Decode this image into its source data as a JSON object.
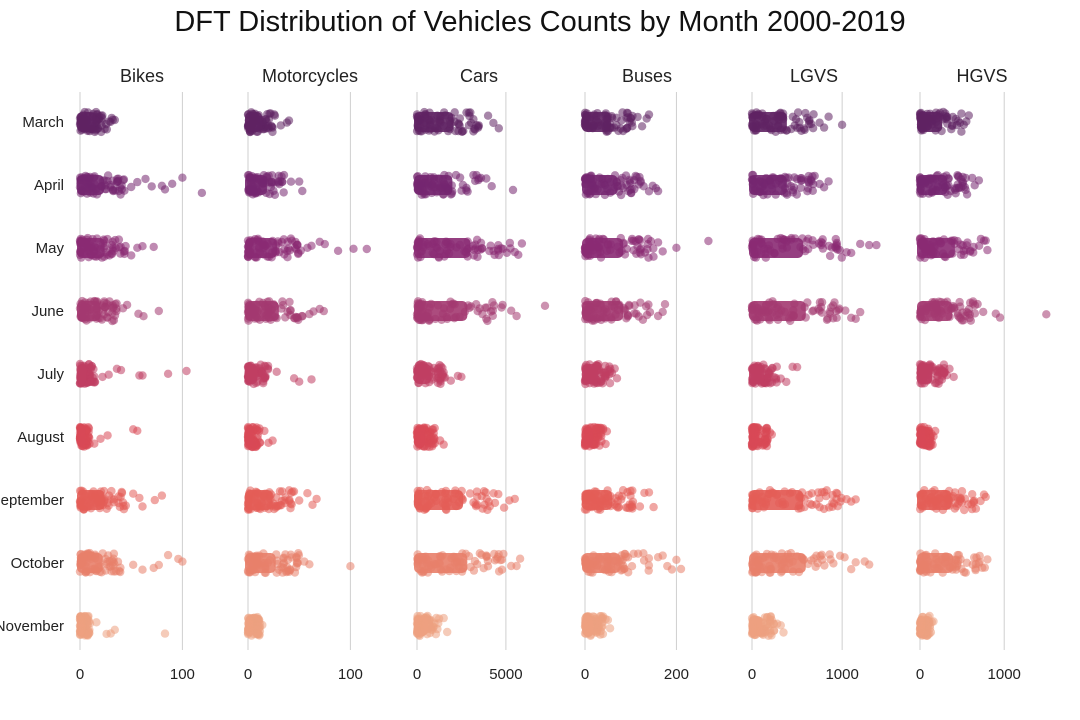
{
  "chart_data": {
    "type": "scatter",
    "style": "strip plot, one facet per vehicle type, jittered points per month",
    "title": "DFT Distribution of Vehicles Counts by Month 2000-2019",
    "grid": "vertical gridlines at tick positions",
    "months": [
      "March",
      "April",
      "May",
      "June",
      "July",
      "August",
      "September",
      "October",
      "November"
    ],
    "month_colors": [
      "#5f2263",
      "#742670",
      "#8a2a73",
      "#a33870",
      "#c03e63",
      "#d84856",
      "#e35d57",
      "#e8806a",
      "#eda07f"
    ],
    "facets": [
      {
        "title": "Bikes",
        "xlim": [
          -5,
          125
        ],
        "ticks": [
          0,
          100
        ],
        "tick_labels": [
          "0",
          "100"
        ],
        "dense_extent": [
          0,
          30,
          25,
          44,
          45,
          33,
          38,
          15,
          45,
          42,
          10
        ],
        "series": [
          {
            "month": "March",
            "dense_max": 30,
            "outliers": [
              32,
              34,
              31
            ]
          },
          {
            "month": "April",
            "dense_max": 44,
            "outliers": [
              50,
              56,
              64,
              70,
              80,
              83,
              90,
              100,
              119
            ]
          },
          {
            "month": "May",
            "dense_max": 45,
            "outliers": [
              50,
              56,
              61,
              72
            ]
          },
          {
            "month": "June",
            "dense_max": 38,
            "outliers": [
              42,
              46,
              57,
              62,
              77
            ]
          },
          {
            "month": "July",
            "dense_max": 15,
            "outliers": [
              22,
              28,
              36,
              40,
              58,
              61,
              86,
              104
            ]
          },
          {
            "month": "August",
            "dense_max": 10,
            "outliers": [
              14,
              20,
              27,
              52,
              56
            ]
          },
          {
            "month": "September",
            "dense_max": 45,
            "outliers": [
              52,
              58,
              61,
              73,
              80
            ]
          },
          {
            "month": "October",
            "dense_max": 42,
            "outliers": [
              52,
              61,
              72,
              77,
              86,
              96,
              100
            ]
          },
          {
            "month": "November",
            "dense_max": 10,
            "outliers": [
              16,
              26,
              30,
              34,
              83
            ]
          }
        ]
      },
      {
        "title": "Motorcycles",
        "xlim": [
          -5,
          125
        ],
        "ticks": [
          0,
          100
        ],
        "tick_labels": [
          "0",
          "100"
        ],
        "series": [
          {
            "month": "March",
            "dense_max": 28,
            "outliers": [
              32,
              38,
              40
            ]
          },
          {
            "month": "April",
            "dense_max": 36,
            "outliers": [
              42,
              50,
              53
            ]
          },
          {
            "month": "May",
            "dense_max": 52,
            "outliers": [
              58,
              62,
              70,
              75,
              88,
              103,
              116
            ]
          },
          {
            "month": "June",
            "dense_max": 55,
            "outliers": [
              60,
              64,
              70,
              74
            ]
          },
          {
            "month": "July",
            "dense_max": 20,
            "outliers": [
              28,
              45,
              50,
              62
            ]
          },
          {
            "month": "August",
            "dense_max": 12,
            "outliers": [
              16,
              20,
              24
            ]
          },
          {
            "month": "September",
            "dense_max": 45,
            "outliers": [
              50,
              58,
              63,
              67
            ]
          },
          {
            "month": "October",
            "dense_max": 50,
            "outliers": [
              55,
              60,
              100
            ]
          },
          {
            "month": "November",
            "dense_max": 12,
            "outliers": [
              14
            ]
          }
        ]
      },
      {
        "title": "Cars",
        "xlim": [
          -300,
          7200
        ],
        "ticks": [
          0,
          5000
        ],
        "tick_labels": [
          "0",
          "5000"
        ],
        "series": [
          {
            "month": "March",
            "dense_max": 3700,
            "outliers": [
              4000,
              4300,
              4600
            ]
          },
          {
            "month": "April",
            "dense_max": 3600,
            "outliers": [
              3900,
              4200,
              5400
            ]
          },
          {
            "month": "May",
            "dense_max": 5300,
            "outliers": [
              5500,
              5700,
              5900
            ]
          },
          {
            "month": "June",
            "dense_max": 5000,
            "outliers": [
              5300,
              5600,
              7200
            ]
          },
          {
            "month": "July",
            "dense_max": 1600,
            "outliers": [
              1900,
              2300,
              2500
            ]
          },
          {
            "month": "August",
            "dense_max": 1000,
            "outliers": [
              1300,
              1500
            ]
          },
          {
            "month": "September",
            "dense_max": 4600,
            "outliers": [
              4900,
              5200,
              5500
            ]
          },
          {
            "month": "October",
            "dense_max": 5000,
            "outliers": [
              5300,
              5600,
              5800
            ]
          },
          {
            "month": "November",
            "dense_max": 1300,
            "outliers": [
              1500,
              1700
            ]
          }
        ]
      },
      {
        "title": "Buses",
        "xlim": [
          -12,
          280
        ],
        "ticks": [
          0,
          200
        ],
        "tick_labels": [
          "0",
          "200"
        ],
        "series": [
          {
            "month": "March",
            "dense_max": 105,
            "outliers": [
              115,
              125,
              135,
              140
            ]
          },
          {
            "month": "April",
            "dense_max": 130,
            "outliers": [
              140,
              148,
              155,
              160
            ]
          },
          {
            "month": "May",
            "dense_max": 150,
            "outliers": [
              160,
              170,
              200,
              270
            ]
          },
          {
            "month": "June",
            "dense_max": 150,
            "outliers": [
              160,
              170,
              175
            ]
          },
          {
            "month": "July",
            "dense_max": 60,
            "outliers": [
              65,
              70
            ]
          },
          {
            "month": "August",
            "dense_max": 40,
            "outliers": [
              45,
              48
            ]
          },
          {
            "month": "September",
            "dense_max": 110,
            "outliers": [
              120,
              130,
              140,
              150
            ]
          },
          {
            "month": "October",
            "dense_max": 140,
            "outliers": [
              160,
              170,
              180,
              190,
              200,
              210
            ]
          },
          {
            "month": "November",
            "dense_max": 40,
            "outliers": [
              45,
              50,
              55
            ]
          }
        ]
      },
      {
        "title": "LGVS",
        "xlim": [
          -60,
          1420
        ],
        "ticks": [
          0,
          1000
        ],
        "tick_labels": [
          "0",
          "1000"
        ],
        "series": [
          {
            "month": "March",
            "dense_max": 700,
            "outliers": [
              750,
              800,
              850,
              1000
            ]
          },
          {
            "month": "April",
            "dense_max": 700,
            "outliers": [
              750,
              800,
              850
            ]
          },
          {
            "month": "May",
            "dense_max": 1000,
            "outliers": [
              1050,
              1100,
              1200,
              1300,
              1380
            ]
          },
          {
            "month": "June",
            "dense_max": 1050,
            "outliers": [
              1100,
              1150,
              1200
            ]
          },
          {
            "month": "July",
            "dense_max": 280,
            "outliers": [
              320,
              380,
              450,
              500
            ]
          },
          {
            "month": "August",
            "dense_max": 180,
            "outliers": [
              200,
              220
            ]
          },
          {
            "month": "September",
            "dense_max": 1000,
            "outliers": [
              1050,
              1100,
              1150
            ]
          },
          {
            "month": "October",
            "dense_max": 1050,
            "outliers": [
              1100,
              1150,
              1250,
              1300
            ]
          },
          {
            "month": "November",
            "dense_max": 250,
            "outliers": [
              280,
              320,
              350
            ]
          }
        ]
      },
      {
        "title": "HGVS",
        "xlim": [
          -50,
          1520
        ],
        "ticks": [
          0,
          1000
        ],
        "tick_labels": [
          "0",
          "1000"
        ],
        "series": [
          {
            "month": "March",
            "dense_max": 500,
            "outliers": [
              520,
              550,
              580
            ]
          },
          {
            "month": "April",
            "dense_max": 600,
            "outliers": [
              620,
              650,
              700
            ]
          },
          {
            "month": "May",
            "dense_max": 750,
            "outliers": [
              760,
              780,
              800
            ]
          },
          {
            "month": "June",
            "dense_max": 700,
            "outliers": [
              750,
              900,
              950,
              1500
            ]
          },
          {
            "month": "July",
            "dense_max": 300,
            "outliers": [
              320,
              350,
              400
            ]
          },
          {
            "month": "August",
            "dense_max": 150,
            "outliers": [
              160,
              180
            ]
          },
          {
            "month": "September",
            "dense_max": 680,
            "outliers": [
              720,
              760,
              780
            ]
          },
          {
            "month": "October",
            "dense_max": 720,
            "outliers": [
              740,
              770,
              800
            ]
          },
          {
            "month": "November",
            "dense_max": 120,
            "outliers": [
              130,
              140,
              160
            ]
          }
        ]
      }
    ]
  }
}
